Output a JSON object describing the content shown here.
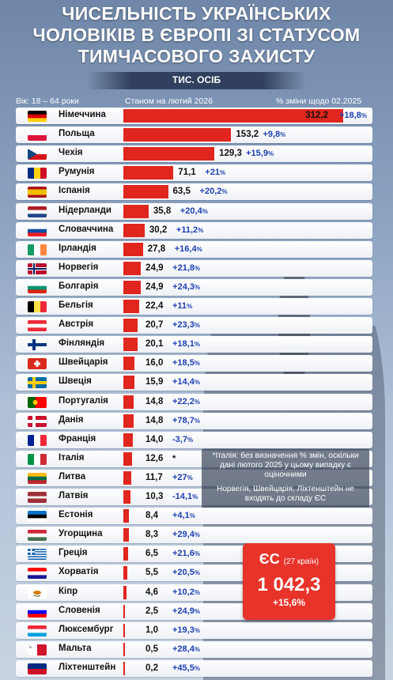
{
  "title_lines": [
    "ЧИСЕЛЬНІСТЬ УКРАЇНСЬКИХ",
    "ЧОЛОВІКІВ В ЄВРОПІ ЗІ СТАТУСОМ",
    "ТИМЧАСОВОГО ЗАХИСТУ"
  ],
  "subtitle": "ТИС. ОСІБ",
  "headers": {
    "age": "Вік: 18 – 64 роки",
    "as_of": "Станом на лютий 2026",
    "change": "% зміни щодо 02.2025"
  },
  "chart_data": {
    "type": "bar",
    "title": "ЧИСЕЛЬНІСТЬ УКРАЇНСЬКИХ ЧОЛОВІКІВ В ЄВРОПІ ЗІ СТАТУСОМ ТИМЧАСОВОГО ЗАХИСТУ",
    "unit": "ТИС. ОСІБ",
    "categories": [
      "Німеччина",
      "Польща",
      "Чехія",
      "Румунія",
      "Іспанія",
      "Нідерланди",
      "Словаччина",
      "Ірландія",
      "Норвегія",
      "Болгарія",
      "Бельгія",
      "Австрія",
      "Фінляндія",
      "Швейцарія",
      "Швеція",
      "Португалія",
      "Данія",
      "Франція",
      "Італія",
      "Литва",
      "Латвія",
      "Естонія",
      "Угорщина",
      "Греція",
      "Хорватія",
      "Кіпр",
      "Словенія",
      "Люксембург",
      "Мальта",
      "Ліхтенштейн"
    ],
    "values": [
      312.2,
      153.2,
      129.3,
      71.1,
      63.5,
      35.8,
      30.2,
      27.8,
      24.9,
      24.9,
      22.4,
      20.7,
      20.1,
      16.0,
      15.9,
      14.8,
      14.8,
      14.0,
      12.6,
      11.7,
      10.3,
      8.4,
      8.3,
      6.5,
      5.5,
      4.6,
      2.5,
      1.0,
      0.5,
      0.2
    ],
    "value_labels": [
      "312,2",
      "153,2",
      "129,3",
      "71,1",
      "63,5",
      "35,8",
      "30,2",
      "27,8",
      "24,9",
      "24,9",
      "22,4",
      "20,7",
      "20,1",
      "16,0",
      "15,9",
      "14,8",
      "14,8",
      "14,0",
      "12,6",
      "11,7",
      "10,3",
      "8,4",
      "8,3",
      "6,5",
      "5,5",
      "4,6",
      "2,5",
      "1,0",
      "0,5",
      "0,2"
    ],
    "change_labels": [
      "+18,8",
      "+9,8",
      "+15,9",
      "+21",
      "+20,2",
      "+20,4",
      "+11,2",
      "+16,4",
      "+21,8",
      "+24,3",
      "+11",
      "+23,3",
      "+18,1",
      "+18,5",
      "+14,4",
      "+22,2",
      "+78,7",
      "-3,7",
      "*",
      "+27",
      "-14,1",
      "+4,1",
      "+29,4",
      "+21,6",
      "+20,5",
      "+10,2",
      "+24,9",
      "+19,3",
      "+28,4",
      "+45,5"
    ],
    "change_has_pct": [
      true,
      true,
      true,
      true,
      true,
      true,
      true,
      true,
      true,
      true,
      true,
      true,
      true,
      true,
      true,
      true,
      true,
      true,
      false,
      true,
      true,
      true,
      true,
      true,
      true,
      true,
      true,
      true,
      true,
      true
    ],
    "flags": [
      {
        "type": "h",
        "colors": [
          "#000000",
          "#dd0000",
          "#ffce00"
        ]
      },
      {
        "type": "h",
        "colors": [
          "#ffffff",
          "#dc143c"
        ]
      },
      {
        "type": "cz",
        "colors": [
          "#ffffff",
          "#d7141a",
          "#11457e"
        ]
      },
      {
        "type": "v",
        "colors": [
          "#002b7f",
          "#fcd116",
          "#ce1126"
        ]
      },
      {
        "type": "es",
        "colors": [
          "#aa151b",
          "#f1bf00",
          "#aa151b"
        ]
      },
      {
        "type": "h",
        "colors": [
          "#ae1c28",
          "#ffffff",
          "#21468b"
        ]
      },
      {
        "type": "h",
        "colors": [
          "#ffffff",
          "#0b4ea2",
          "#ee1c25"
        ]
      },
      {
        "type": "v",
        "colors": [
          "#169b62",
          "#ffffff",
          "#ff883e"
        ]
      },
      {
        "type": "nordic",
        "colors": [
          "#ba0c2f",
          "#ffffff",
          "#00205b"
        ]
      },
      {
        "type": "h",
        "colors": [
          "#ffffff",
          "#00966e",
          "#d62612"
        ]
      },
      {
        "type": "v",
        "colors": [
          "#000000",
          "#fae042",
          "#ed2939"
        ]
      },
      {
        "type": "h",
        "colors": [
          "#ed2939",
          "#ffffff",
          "#ed2939"
        ]
      },
      {
        "type": "nordic",
        "colors": [
          "#ffffff",
          "#003580",
          "#003580"
        ]
      },
      {
        "type": "ch",
        "colors": [
          "#da291c",
          "#ffffff"
        ]
      },
      {
        "type": "nordic",
        "colors": [
          "#006aa7",
          "#fecc00",
          "#fecc00"
        ]
      },
      {
        "type": "pt",
        "colors": [
          "#006600",
          "#ff0000"
        ]
      },
      {
        "type": "nordic",
        "colors": [
          "#c8102e",
          "#ffffff",
          "#ffffff"
        ]
      },
      {
        "type": "v",
        "colors": [
          "#002395",
          "#ffffff",
          "#ed2939"
        ]
      },
      {
        "type": "v",
        "colors": [
          "#009246",
          "#ffffff",
          "#ce2b37"
        ]
      },
      {
        "type": "h",
        "colors": [
          "#fdb913",
          "#006a44",
          "#c1272d"
        ]
      },
      {
        "type": "lv",
        "colors": [
          "#9e3039",
          "#ffffff"
        ]
      },
      {
        "type": "h",
        "colors": [
          "#0072ce",
          "#000000",
          "#ffffff"
        ]
      },
      {
        "type": "h",
        "colors": [
          "#ce2939",
          "#ffffff",
          "#477050"
        ]
      },
      {
        "type": "gr",
        "colors": [
          "#0d5eaf",
          "#ffffff"
        ]
      },
      {
        "type": "h",
        "colors": [
          "#ff0000",
          "#ffffff",
          "#171796"
        ]
      },
      {
        "type": "cy",
        "colors": [
          "#ffffff",
          "#d57800"
        ]
      },
      {
        "type": "h",
        "colors": [
          "#ffffff",
          "#0000ff",
          "#ff0000"
        ]
      },
      {
        "type": "h",
        "colors": [
          "#ed2939",
          "#ffffff",
          "#00a1de"
        ]
      },
      {
        "type": "mt",
        "colors": [
          "#ffffff",
          "#cf142b"
        ]
      },
      {
        "type": "h",
        "colors": [
          "#002b7f",
          "#ce1126"
        ]
      }
    ],
    "bar_color": "#e0261f",
    "change_color": "#1d3fb0"
  },
  "notes": [
    "*Італія: без визначення % змін, оскільки дані лютого 2025 у цьому випадку є оціночними",
    "Норвегія, Швейцарія, Ліхтенштейн не входять до складу ЄС"
  ],
  "eu_box": {
    "label": "ЄС",
    "sublabel": "(27 країн)",
    "value": "1 042,3",
    "change": "+15,6%"
  }
}
